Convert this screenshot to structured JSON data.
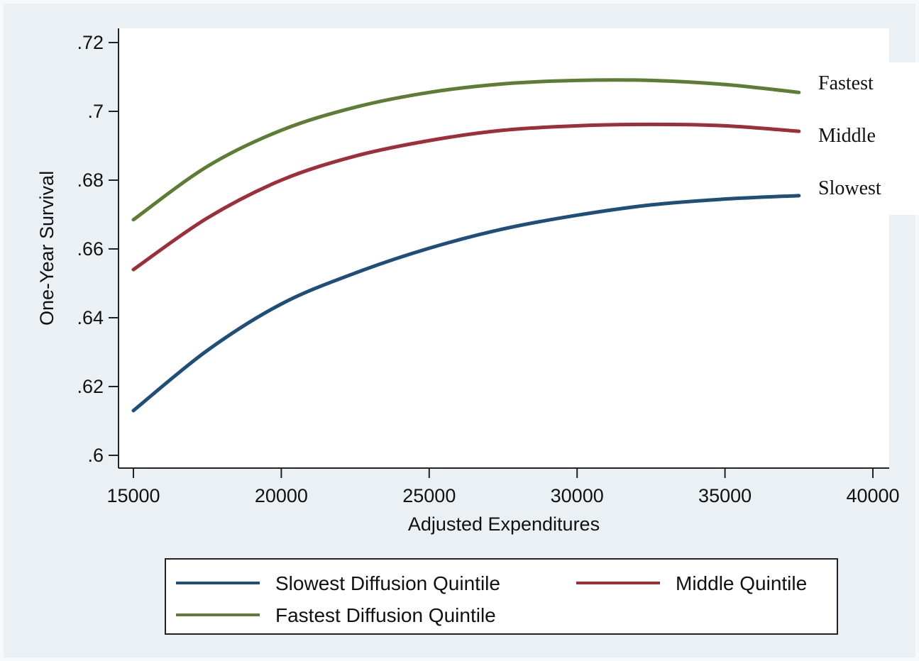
{
  "colors": {
    "outer_background": "#eaf0f3",
    "plot_background": "#ffffff",
    "axis": "#222222",
    "series_slowest": "#1f4e79",
    "series_middle": "#9c2f3a",
    "series_fastest": "#5e7d34"
  },
  "chart_data": {
    "type": "line",
    "title": "",
    "xlabel": "Adjusted Expenditures",
    "ylabel": "One-Year Survival",
    "xlim": [
      15000,
      40000
    ],
    "ylim": [
      0.6,
      0.72
    ],
    "grid": false,
    "legend_placement": "bottom",
    "x_ticks": [
      15000,
      20000,
      25000,
      30000,
      35000,
      40000
    ],
    "x_tick_labels": [
      "15000",
      "20000",
      "25000",
      "30000",
      "35000",
      "40000"
    ],
    "y_ticks": [
      0.6,
      0.62,
      0.64,
      0.66,
      0.68,
      0.7,
      0.72
    ],
    "y_tick_labels": [
      ".6",
      ".62",
      ".64",
      ".66",
      ".68",
      ".7",
      ".72"
    ],
    "x": [
      15000,
      17500,
      20000,
      22500,
      25000,
      27500,
      30000,
      32500,
      35000,
      37500
    ],
    "series": [
      {
        "name": "Slowest Diffusion Quintile",
        "end_label": "Slowest",
        "color": "#1f4e79",
        "values": [
          0.613,
          0.6305,
          0.644,
          0.653,
          0.6602,
          0.6658,
          0.6698,
          0.6728,
          0.6745,
          0.6755
        ]
      },
      {
        "name": "Middle Quintile",
        "end_label": "Middle",
        "color": "#9c2f3a",
        "values": [
          0.654,
          0.669,
          0.68,
          0.687,
          0.6915,
          0.6945,
          0.6958,
          0.6962,
          0.6958,
          0.6942
        ]
      },
      {
        "name": "Fastest Diffusion Quintile",
        "end_label": "Fastest",
        "color": "#5e7d34",
        "values": [
          0.6685,
          0.684,
          0.6945,
          0.7012,
          0.7055,
          0.708,
          0.709,
          0.709,
          0.7078,
          0.7055
        ]
      }
    ]
  }
}
